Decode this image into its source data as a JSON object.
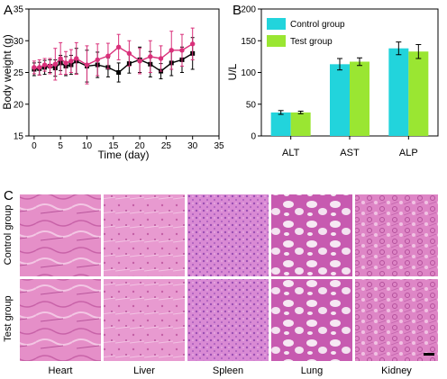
{
  "panels": {
    "a_letter": "A",
    "b_letter": "B",
    "c_letter": "C"
  },
  "chart_data": [
    {
      "type": "line",
      "xlabel": "Time (day)",
      "ylabel": "Body weight (g)",
      "xlim": [
        -1,
        35
      ],
      "ylim": [
        15,
        35
      ],
      "xticks": [
        "0",
        "5",
        "10",
        "15",
        "20",
        "25",
        "30",
        "35"
      ],
      "yticks": [
        "15",
        "20",
        "25",
        "30",
        "35"
      ],
      "grid": false,
      "series": [
        {
          "color": "#000000",
          "marker": "square",
          "x": [
            0,
            1,
            2,
            3,
            4,
            5,
            6,
            7,
            8,
            10,
            12,
            14,
            16,
            18,
            20,
            22,
            24,
            26,
            28,
            30
          ],
          "y": [
            25.5,
            25.6,
            25.8,
            26.0,
            25.7,
            26.5,
            26.0,
            26.2,
            26.8,
            26.0,
            26.2,
            25.8,
            25.0,
            26.4,
            27.0,
            26.3,
            25.2,
            26.5,
            27.0,
            28.0
          ],
          "err": [
            1.0,
            1.0,
            1.1,
            1.0,
            1.3,
            1.2,
            1.5,
            1.5,
            2.0,
            2.5,
            2.0,
            1.5,
            1.5,
            1.5,
            2.0,
            2.0,
            1.2,
            2.0,
            2.0,
            2.5
          ]
        },
        {
          "color": "#d9307a",
          "marker": "circle",
          "x": [
            0,
            1,
            2,
            3,
            4,
            5,
            6,
            7,
            8,
            10,
            12,
            14,
            16,
            18,
            20,
            22,
            24,
            26,
            28,
            30
          ],
          "y": [
            25.8,
            25.8,
            26.2,
            26.0,
            26.3,
            27.2,
            26.5,
            26.8,
            27.2,
            26.2,
            27.0,
            27.6,
            29.0,
            28.0,
            26.8,
            27.5,
            27.2,
            28.5,
            28.5,
            29.5
          ],
          "err": [
            1.0,
            1.2,
            1.0,
            1.2,
            2.5,
            2.5,
            1.8,
            1.8,
            2.5,
            3.0,
            2.5,
            2.0,
            2.0,
            2.0,
            2.0,
            2.5,
            2.0,
            3.0,
            2.5,
            2.5
          ]
        }
      ]
    },
    {
      "type": "bar",
      "ylabel": "U/L",
      "ylim": [
        0,
        200
      ],
      "yticks": [
        "0",
        "50",
        "100",
        "150",
        "200"
      ],
      "categories": [
        "ALT",
        "AST",
        "ALP"
      ],
      "legend": "top-left",
      "series": [
        {
          "name": "Control group",
          "color": "#22d4dc",
          "values": [
            37,
            113,
            138
          ],
          "err": [
            3,
            9,
            10
          ]
        },
        {
          "name": "Test group",
          "color": "#9ae632",
          "values": [
            37,
            117,
            133
          ],
          "err": [
            2,
            6,
            11
          ]
        }
      ]
    }
  ],
  "histology": {
    "rows": [
      "Control group",
      "Test group"
    ],
    "columns": [
      "Heart",
      "Liver",
      "Spleen",
      "Lung",
      "Kidney"
    ]
  }
}
